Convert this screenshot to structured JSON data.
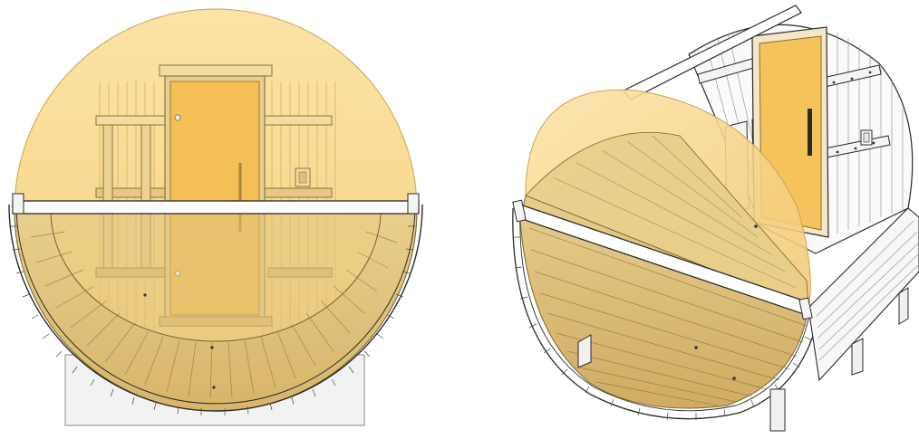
{
  "colors": {
    "glass_tint": "#f7cf6e",
    "door_glass": "#f5c25c",
    "wood_line": "#6b6b6b",
    "outline": "#2a2a2a",
    "base": "#efefef",
    "background": "#ffffff"
  },
  "views": [
    {
      "id": "front-elevation",
      "icon": "barrel-sauna-front-view"
    },
    {
      "id": "isometric-cutaway",
      "icon": "barrel-sauna-isometric-view"
    }
  ]
}
